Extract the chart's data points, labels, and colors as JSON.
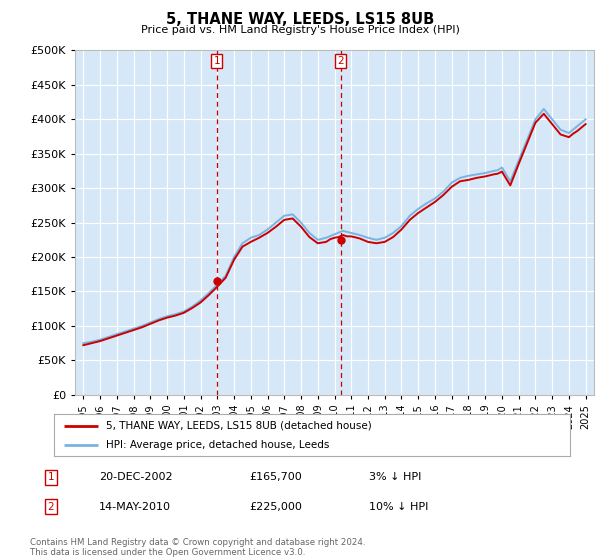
{
  "title": "5, THANE WAY, LEEDS, LS15 8UB",
  "subtitle": "Price paid vs. HM Land Registry's House Price Index (HPI)",
  "footer": "Contains HM Land Registry data © Crown copyright and database right 2024.\nThis data is licensed under the Open Government Licence v3.0.",
  "legend_line1": "5, THANE WAY, LEEDS, LS15 8UB (detached house)",
  "legend_line2": "HPI: Average price, detached house, Leeds",
  "annotation1_label": "1",
  "annotation1_date": "20-DEC-2002",
  "annotation1_price": "£165,700",
  "annotation1_hpi": "3% ↓ HPI",
  "annotation2_label": "2",
  "annotation2_date": "14-MAY-2010",
  "annotation2_price": "£225,000",
  "annotation2_hpi": "10% ↓ HPI",
  "hpi_color": "#7ab3e0",
  "price_color": "#cc0000",
  "plot_bg_color": "#d6e8f7",
  "grid_color": "#ffffff",
  "ylim": [
    0,
    500000
  ],
  "yticks": [
    0,
    50000,
    100000,
    150000,
    200000,
    250000,
    300000,
    350000,
    400000,
    450000,
    500000
  ],
  "sale1_x": 2002.97,
  "sale1_y": 165700,
  "sale2_x": 2010.37,
  "sale2_y": 225000,
  "hpi_years": [
    1995.0,
    1995.25,
    1995.5,
    1995.75,
    1996.0,
    1996.25,
    1996.5,
    1996.75,
    1997.0,
    1997.25,
    1997.5,
    1997.75,
    1998.0,
    1998.25,
    1998.5,
    1998.75,
    1999.0,
    1999.25,
    1999.5,
    1999.75,
    2000.0,
    2000.25,
    2000.5,
    2000.75,
    2001.0,
    2001.25,
    2001.5,
    2001.75,
    2002.0,
    2002.25,
    2002.5,
    2002.75,
    2003.0,
    2003.25,
    2003.5,
    2003.75,
    2004.0,
    2004.25,
    2004.5,
    2004.75,
    2005.0,
    2005.25,
    2005.5,
    2005.75,
    2006.0,
    2006.25,
    2006.5,
    2006.75,
    2007.0,
    2007.25,
    2007.5,
    2007.75,
    2008.0,
    2008.25,
    2008.5,
    2008.75,
    2009.0,
    2009.25,
    2009.5,
    2009.75,
    2010.0,
    2010.25,
    2010.5,
    2010.75,
    2011.0,
    2011.25,
    2011.5,
    2011.75,
    2012.0,
    2012.25,
    2012.5,
    2012.75,
    2013.0,
    2013.25,
    2013.5,
    2013.75,
    2014.0,
    2014.25,
    2014.5,
    2014.75,
    2015.0,
    2015.25,
    2015.5,
    2015.75,
    2016.0,
    2016.25,
    2016.5,
    2016.75,
    2017.0,
    2017.25,
    2017.5,
    2017.75,
    2018.0,
    2018.25,
    2018.5,
    2018.75,
    2019.0,
    2019.25,
    2019.5,
    2019.75,
    2020.0,
    2020.25,
    2020.5,
    2020.75,
    2021.0,
    2021.25,
    2021.5,
    2021.75,
    2022.0,
    2022.25,
    2022.5,
    2022.75,
    2023.0,
    2023.25,
    2023.5,
    2023.75,
    2024.0,
    2024.25,
    2024.5,
    2024.75,
    2025.0
  ],
  "hpi_values": [
    75000,
    76000,
    77000,
    78500,
    80000,
    82000,
    84000,
    86000,
    88000,
    90000,
    92000,
    94000,
    96000,
    98000,
    100000,
    102500,
    105000,
    107500,
    110000,
    112000,
    114000,
    115500,
    117000,
    119000,
    121000,
    124500,
    128000,
    132500,
    137000,
    142500,
    148000,
    154000,
    160000,
    166500,
    173000,
    186500,
    200000,
    210000,
    220000,
    224000,
    228000,
    230000,
    232000,
    236000,
    240000,
    245000,
    250000,
    255000,
    260000,
    261000,
    262000,
    256000,
    250000,
    242500,
    235000,
    230000,
    225000,
    226500,
    228000,
    230500,
    233000,
    235500,
    238000,
    236500,
    235000,
    233500,
    232000,
    230000,
    228000,
    226500,
    225000,
    226500,
    228000,
    231500,
    235000,
    240000,
    245000,
    252500,
    260000,
    265000,
    270000,
    274000,
    278000,
    281500,
    285000,
    290000,
    295000,
    301500,
    308000,
    311500,
    315000,
    316500,
    318000,
    319000,
    320000,
    321000,
    322000,
    323500,
    325000,
    326000,
    330000,
    320000,
    310000,
    325000,
    340000,
    355000,
    370000,
    385000,
    400000,
    407500,
    415000,
    407500,
    400000,
    392500,
    385000,
    382500,
    380000,
    385000,
    390000,
    395000,
    400000
  ],
  "price_years": [
    1995.0,
    1995.25,
    1995.5,
    1995.75,
    1996.0,
    1996.25,
    1996.5,
    1996.75,
    1997.0,
    1997.25,
    1997.5,
    1997.75,
    1998.0,
    1998.25,
    1998.5,
    1998.75,
    1999.0,
    1999.25,
    1999.5,
    1999.75,
    2000.0,
    2000.25,
    2000.5,
    2000.75,
    2001.0,
    2001.25,
    2001.5,
    2001.75,
    2002.0,
    2002.25,
    2002.5,
    2002.75,
    2003.0,
    2003.25,
    2003.5,
    2003.75,
    2004.0,
    2004.25,
    2004.5,
    2004.75,
    2005.0,
    2005.25,
    2005.5,
    2005.75,
    2006.0,
    2006.25,
    2006.5,
    2006.75,
    2007.0,
    2007.25,
    2007.5,
    2007.75,
    2008.0,
    2008.25,
    2008.5,
    2008.75,
    2009.0,
    2009.25,
    2009.5,
    2009.75,
    2010.0,
    2010.25,
    2010.5,
    2010.75,
    2011.0,
    2011.25,
    2011.5,
    2011.75,
    2012.0,
    2012.25,
    2012.5,
    2012.75,
    2013.0,
    2013.25,
    2013.5,
    2013.75,
    2014.0,
    2014.25,
    2014.5,
    2014.75,
    2015.0,
    2015.25,
    2015.5,
    2015.75,
    2016.0,
    2016.25,
    2016.5,
    2016.75,
    2017.0,
    2017.25,
    2017.5,
    2017.75,
    2018.0,
    2018.25,
    2018.5,
    2018.75,
    2019.0,
    2019.25,
    2019.5,
    2019.75,
    2020.0,
    2020.25,
    2020.5,
    2020.75,
    2021.0,
    2021.25,
    2021.5,
    2021.75,
    2022.0,
    2022.25,
    2022.5,
    2022.75,
    2023.0,
    2023.25,
    2023.5,
    2023.75,
    2024.0,
    2024.25,
    2024.5,
    2024.75,
    2025.0
  ],
  "price_values": [
    72000,
    73500,
    75000,
    76500,
    78000,
    80000,
    82000,
    84000,
    86000,
    88000,
    90000,
    92000,
    94000,
    96000,
    98000,
    100500,
    103000,
    105500,
    108000,
    110000,
    112000,
    113500,
    115000,
    117000,
    119000,
    122500,
    126000,
    130000,
    134000,
    139500,
    145000,
    151000,
    157000,
    163500,
    170000,
    183000,
    196000,
    205500,
    215000,
    218500,
    222000,
    225000,
    228000,
    231500,
    235000,
    239500,
    244000,
    249000,
    254000,
    255000,
    256000,
    250000,
    244000,
    236500,
    229000,
    224500,
    220000,
    221000,
    222000,
    226000,
    228000,
    229000,
    232000,
    230000,
    230000,
    228500,
    227000,
    224500,
    222000,
    221000,
    220000,
    221000,
    222000,
    225500,
    229000,
    234500,
    240000,
    247000,
    254000,
    259000,
    264000,
    268000,
    272000,
    276000,
    280000,
    285000,
    290000,
    296000,
    302000,
    306000,
    310000,
    311000,
    312000,
    313500,
    315000,
    316000,
    317000,
    318500,
    320000,
    321000,
    324000,
    314000,
    304000,
    319500,
    335000,
    350000,
    365000,
    380000,
    395000,
    401500,
    408000,
    400500,
    393000,
    385500,
    378000,
    376000,
    374000,
    379000,
    383000,
    388000,
    393000
  ],
  "xticks": [
    1995,
    1996,
    1997,
    1998,
    1999,
    2000,
    2001,
    2002,
    2003,
    2004,
    2005,
    2006,
    2007,
    2008,
    2009,
    2010,
    2011,
    2012,
    2013,
    2014,
    2015,
    2016,
    2017,
    2018,
    2019,
    2020,
    2021,
    2022,
    2023,
    2024,
    2025
  ],
  "xlim": [
    1994.5,
    2025.5
  ]
}
